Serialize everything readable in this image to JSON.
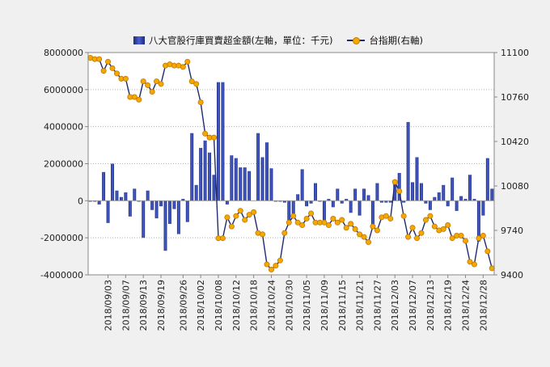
{
  "chart_data": {
    "type": "bar+line",
    "legend": {
      "position": "top",
      "bar_label": "八大官股行庫買賣超金額(左軸，單位：千元)",
      "line_label": "台指期(右軸)"
    },
    "colors": {
      "bar": "#2a3ea8",
      "line": "#1f2a70",
      "marker": "#f5a800",
      "marker_edge": "#c07800",
      "background": "#f0f0f0",
      "grid": "#b8b8b8"
    },
    "y_left": {
      "min": -4000000,
      "max": 8000000,
      "ticks": [
        8000000,
        6000000,
        4000000,
        2000000,
        0,
        -2000000,
        -4000000
      ],
      "tick_labels": [
        "8000000",
        "6000000",
        "4000000",
        "2000000",
        "0",
        "-2000000",
        "-4000000"
      ]
    },
    "y_right": {
      "min": 9400,
      "max": 11100,
      "ticks": [
        11100,
        10760,
        10420,
        10080,
        9740,
        9400
      ],
      "tick_labels": [
        "11100",
        "10760",
        "10420",
        "10080",
        "9740",
        "9400"
      ]
    },
    "grid": "horizontal dotted",
    "x_tick_labels": [
      {
        "index": 4,
        "label": "2018/09/03"
      },
      {
        "index": 8,
        "label": "2018/09/07"
      },
      {
        "index": 12,
        "label": "2018/09/13"
      },
      {
        "index": 16,
        "label": "2018/09/19"
      },
      {
        "index": 21,
        "label": "2018/09/26"
      },
      {
        "index": 25,
        "label": "2018/10/02"
      },
      {
        "index": 29,
        "label": "2018/10/08"
      },
      {
        "index": 33,
        "label": "2018/10/12"
      },
      {
        "index": 37,
        "label": "2018/10/18"
      },
      {
        "index": 41,
        "label": "2018/10/24"
      },
      {
        "index": 45,
        "label": "2018/10/30"
      },
      {
        "index": 49,
        "label": "2018/11/05"
      },
      {
        "index": 53,
        "label": "2018/11/09"
      },
      {
        "index": 57,
        "label": "2018/11/15"
      },
      {
        "index": 61,
        "label": "2018/11/21"
      },
      {
        "index": 65,
        "label": "2018/11/27"
      },
      {
        "index": 69,
        "label": "2018/12/03"
      },
      {
        "index": 73,
        "label": "2018/12/07"
      },
      {
        "index": 77,
        "label": "2018/12/13"
      },
      {
        "index": 81,
        "label": "2018/12/19"
      },
      {
        "index": 85,
        "label": "2018/12/24"
      },
      {
        "index": 89,
        "label": "2018/12/28"
      }
    ],
    "bars": [
      -50000,
      -50000,
      -200000,
      1550000,
      -1200000,
      2000000,
      550000,
      200000,
      450000,
      -850000,
      650000,
      -50000,
      -2000000,
      550000,
      -500000,
      -950000,
      -300000,
      -2700000,
      -1250000,
      -450000,
      -1800000,
      100000,
      -1150000,
      3650000,
      850000,
      2850000,
      3250000,
      2600000,
      1400000,
      6400000,
      6400000,
      -200000,
      2450000,
      2300000,
      1800000,
      1800000,
      1600000,
      0,
      3650000,
      2350000,
      3150000,
      1750000,
      -50000,
      -50000,
      -100000,
      -1150000,
      -700000,
      350000,
      1700000,
      -300000,
      -150000,
      950000,
      -50000,
      -1100000,
      100000,
      -350000,
      650000,
      -150000,
      100000,
      -650000,
      650000,
      -800000,
      650000,
      300000,
      -1300000,
      950000,
      -100000,
      -100000,
      -100000,
      1000000,
      1500000,
      -100000,
      4250000,
      1000000,
      2350000,
      950000,
      -150000,
      -500000,
      200000,
      450000,
      850000,
      -300000,
      1250000,
      -550000,
      250000,
      100000,
      1400000,
      100000,
      -2200000,
      -800000,
      2300000,
      650000
    ],
    "line": [
      11060,
      11050,
      11050,
      10960,
      11030,
      10980,
      10940,
      10900,
      10900,
      10760,
      10760,
      10740,
      10880,
      10850,
      10800,
      10880,
      10860,
      11000,
      11010,
      11000,
      11000,
      10990,
      11030,
      10880,
      10860,
      10720,
      10480,
      10450,
      10450,
      9680,
      9680,
      9840,
      9770,
      9850,
      9890,
      9820,
      9860,
      9880,
      9720,
      9710,
      9480,
      9440,
      9470,
      9510,
      9720,
      9800,
      9850,
      9800,
      9780,
      9830,
      9870,
      9800,
      9800,
      9800,
      9780,
      9830,
      9800,
      9820,
      9760,
      9790,
      9750,
      9710,
      9690,
      9650,
      9770,
      9740,
      9840,
      9850,
      9830,
      10110,
      10040,
      9850,
      9690,
      9760,
      9680,
      9720,
      9820,
      9850,
      9770,
      9740,
      9750,
      9780,
      9680,
      9700,
      9700,
      9660,
      9500,
      9480,
      9680,
      9700,
      9580,
      9450
    ]
  }
}
